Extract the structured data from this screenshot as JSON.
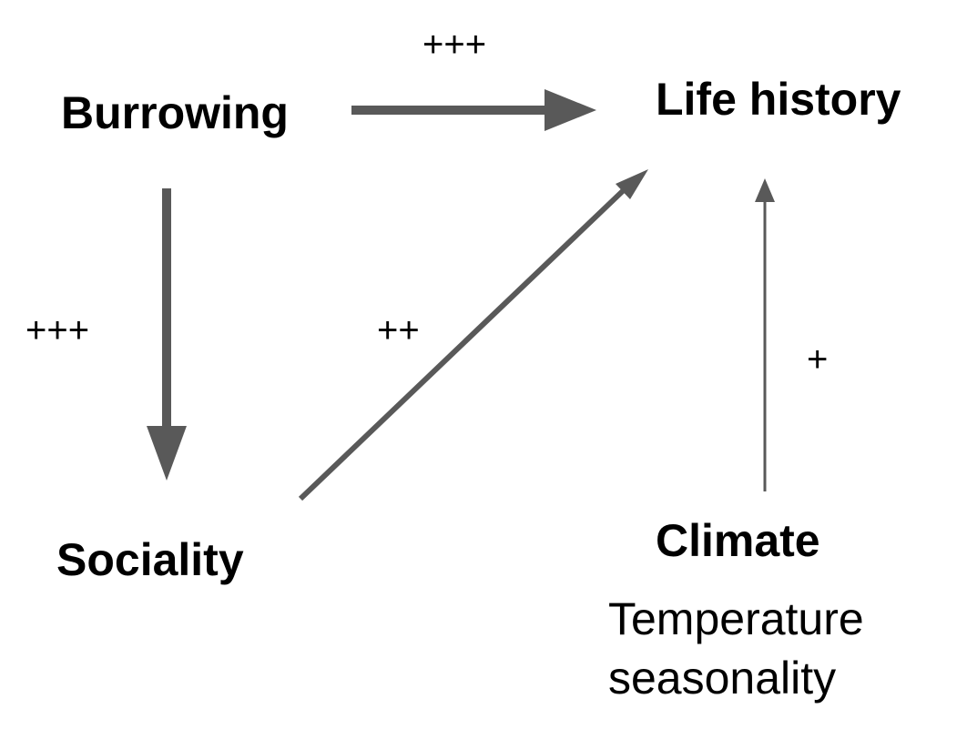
{
  "nodes": {
    "burrowing": "Burrowing",
    "life_history": "Life history",
    "sociality": "Sociality",
    "climate": "Climate",
    "climate_sub_1": "Temperature",
    "climate_sub_2": "seasonality"
  },
  "edges": {
    "burrowing_to_life_history": "+++",
    "burrowing_to_sociality": "+++",
    "sociality_to_life_history": "++",
    "climate_to_life_history": "+"
  },
  "colors": {
    "arrow": "#595959",
    "text": "#000000"
  }
}
